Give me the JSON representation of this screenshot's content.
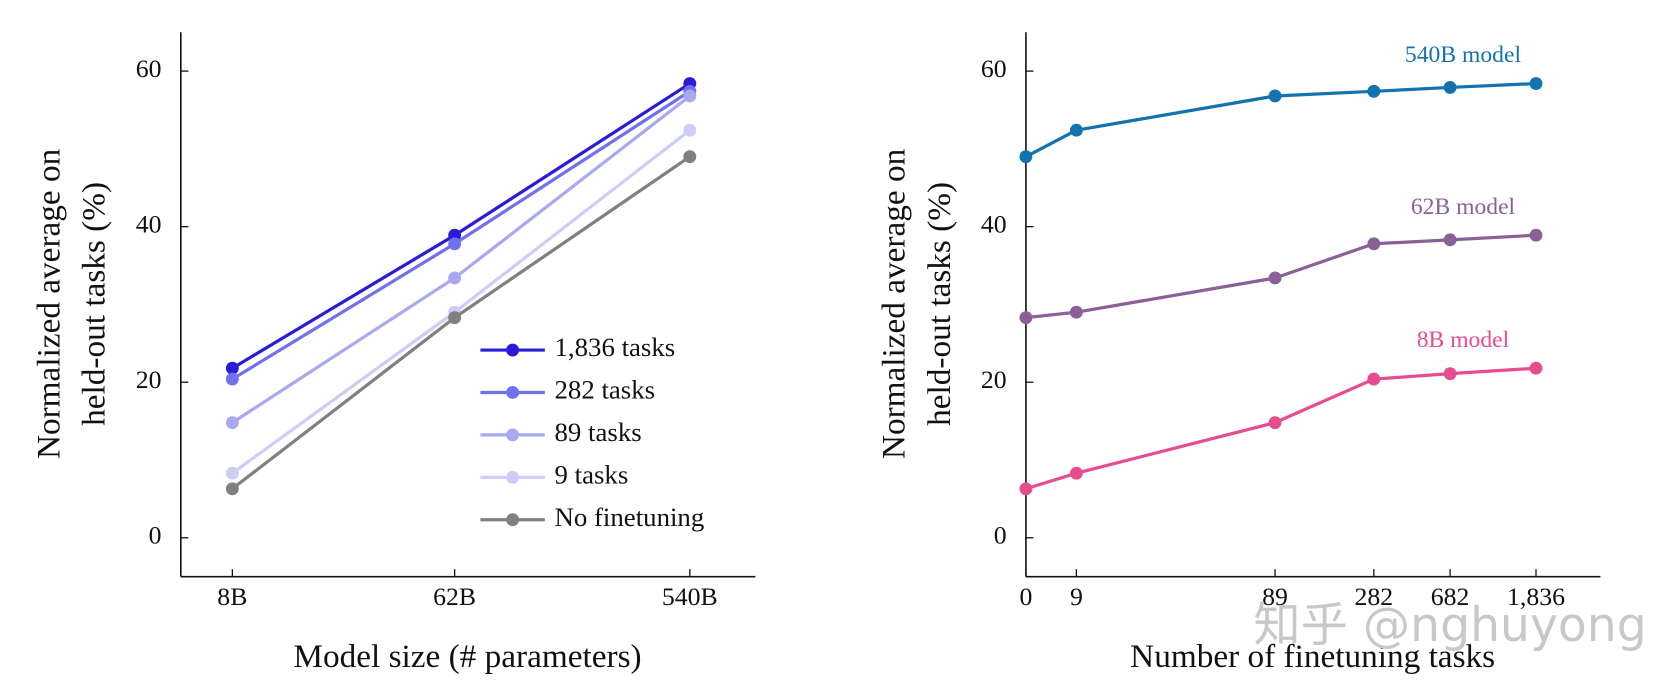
{
  "chart_data": [
    {
      "type": "line",
      "xlabel": "Model size (# parameters)",
      "ylabel": [
        "Normalized average on",
        "held-out tasks (%)"
      ],
      "categories": [
        "8B",
        "62B",
        "540B"
      ],
      "series": [
        {
          "name": "1,836 tasks",
          "color": "#2a1bd9",
          "values": [
            21.8,
            38.9,
            58.4
          ]
        },
        {
          "name": "282 tasks",
          "color": "#7071ee",
          "values": [
            20.4,
            37.8,
            57.4
          ]
        },
        {
          "name": "89 tasks",
          "color": "#a9a9f2",
          "values": [
            14.8,
            33.4,
            56.8
          ]
        },
        {
          "name": "9 tasks",
          "color": "#cdcdf6",
          "values": [
            8.3,
            29.0,
            52.4
          ]
        },
        {
          "name": "No finetuning",
          "color": "#808080",
          "values": [
            6.3,
            28.3,
            49.0
          ]
        }
      ],
      "ylim": [
        -5,
        65
      ],
      "yticks": [
        0,
        20,
        40,
        60
      ],
      "legend": "lower right"
    },
    {
      "type": "line",
      "xlabel": "Number of finetuning tasks",
      "ylabel": [
        "Normalized average on",
        "held-out tasks (%)"
      ],
      "categories": [
        "0",
        "9",
        "89",
        "282",
        "682",
        "1,836"
      ],
      "series": [
        {
          "name": "540B model",
          "color": "#1273b0",
          "values": [
            49.0,
            52.4,
            56.8,
            57.4,
            57.9,
            58.4
          ]
        },
        {
          "name": "62B model",
          "color": "#8a6097",
          "values": [
            28.3,
            29.0,
            33.4,
            37.8,
            38.3,
            38.9
          ]
        },
        {
          "name": "8B model",
          "color": "#e64d8f",
          "values": [
            6.3,
            8.3,
            14.8,
            20.4,
            21.1,
            21.8
          ]
        }
      ],
      "ylim": [
        -5,
        65
      ],
      "yticks": [
        0,
        20,
        40,
        60
      ],
      "legend": "line labels"
    }
  ],
  "watermark": "知乎 @nghuyong"
}
